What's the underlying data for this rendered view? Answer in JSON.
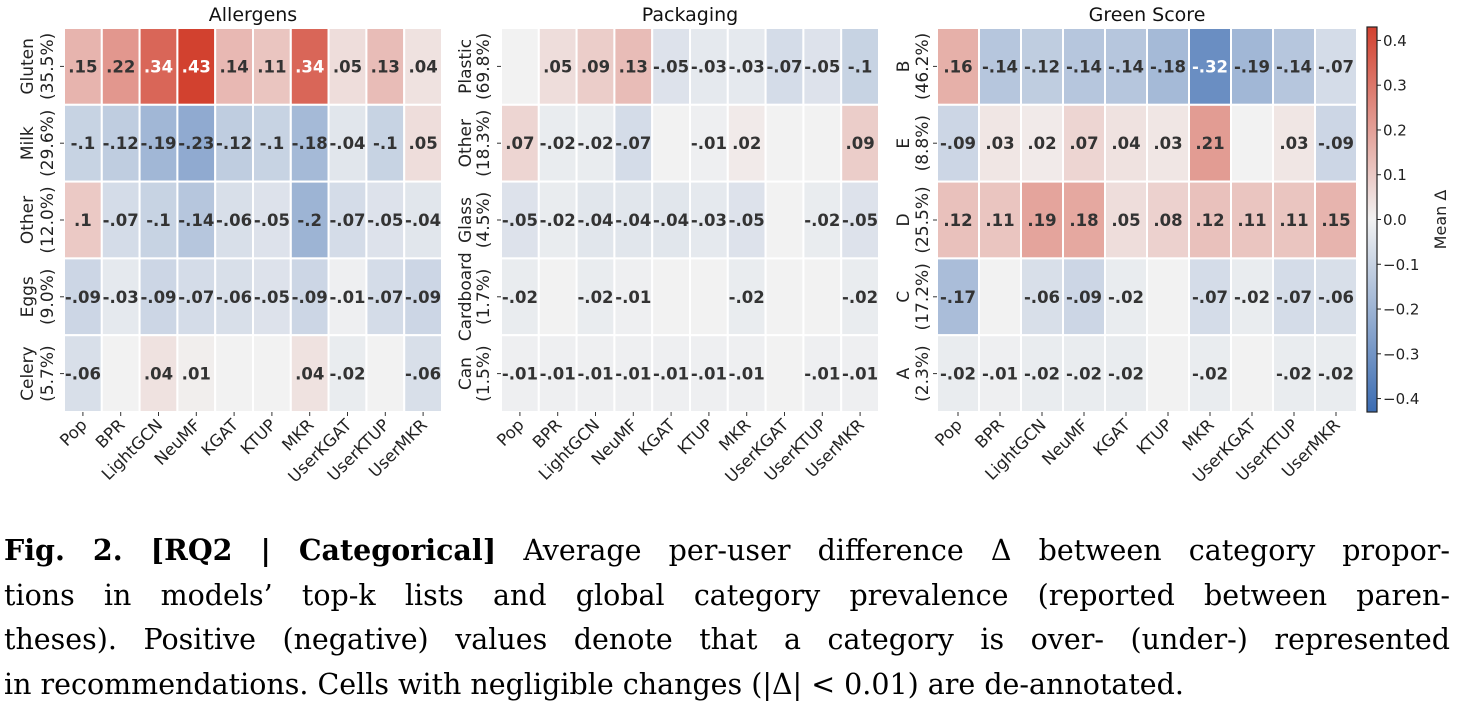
{
  "chart_data": {
    "type": "heatmap",
    "columns": [
      "Pop",
      "BPR",
      "LightGCN",
      "NeuMF",
      "KGAT",
      "KTUP",
      "MKR",
      "UserKGAT",
      "UserKTUP",
      "UserMKR"
    ],
    "colorbar": {
      "label": "Mean Δ",
      "range": [
        -0.43,
        0.43
      ],
      "ticks": [
        0.4,
        0.3,
        0.2,
        0.1,
        0.0,
        -0.1,
        -0.2,
        -0.3,
        -0.4
      ],
      "tick_labels": [
        "0.4",
        "0.3",
        "0.2",
        "0.1",
        "0.0",
        "−0.1",
        "−0.2",
        "−0.3",
        "−0.4"
      ],
      "colors": {
        "negative": "#3b6cb2",
        "center": "#f2f2f2",
        "positive": "#d2412f"
      }
    },
    "panels": [
      {
        "title": "Allergens",
        "rows": [
          {
            "label": "Gluten",
            "prevalence": "(35.5%)"
          },
          {
            "label": "Milk",
            "prevalence": "(29.6%)"
          },
          {
            "label": "Other",
            "prevalence": "(12.0%)"
          },
          {
            "label": "Eggs",
            "prevalence": "(9.0%)"
          },
          {
            "label": "Celery",
            "prevalence": "(5.7%)"
          }
        ],
        "values": [
          [
            0.15,
            0.22,
            0.34,
            0.43,
            0.14,
            0.11,
            0.34,
            0.05,
            0.13,
            0.04
          ],
          [
            -0.1,
            -0.12,
            -0.19,
            -0.23,
            -0.12,
            -0.1,
            -0.18,
            -0.04,
            -0.1,
            0.05
          ],
          [
            0.1,
            -0.07,
            -0.1,
            -0.14,
            -0.06,
            -0.05,
            -0.2,
            -0.07,
            -0.05,
            -0.04
          ],
          [
            -0.09,
            -0.03,
            -0.09,
            -0.07,
            -0.06,
            -0.05,
            -0.09,
            -0.01,
            -0.07,
            -0.09
          ],
          [
            -0.06,
            null,
            0.04,
            0.01,
            null,
            null,
            0.04,
            -0.02,
            null,
            -0.06
          ]
        ]
      },
      {
        "title": "Packaging",
        "rows": [
          {
            "label": "Plastic",
            "prevalence": "(69.8%)"
          },
          {
            "label": "Other",
            "prevalence": "(18.3%)"
          },
          {
            "label": "Glass",
            "prevalence": "(4.5%)"
          },
          {
            "label": "Cardboard",
            "prevalence": "(1.7%)"
          },
          {
            "label": "Can",
            "prevalence": "(1.5%)"
          }
        ],
        "values": [
          [
            null,
            0.05,
            0.09,
            0.13,
            -0.05,
            -0.03,
            -0.03,
            -0.07,
            -0.05,
            -0.1
          ],
          [
            0.07,
            -0.02,
            -0.02,
            -0.07,
            null,
            -0.01,
            0.02,
            null,
            null,
            0.09
          ],
          [
            -0.05,
            -0.02,
            -0.04,
            -0.04,
            -0.04,
            -0.03,
            -0.05,
            null,
            -0.02,
            -0.05
          ],
          [
            -0.02,
            null,
            -0.02,
            -0.01,
            null,
            null,
            -0.02,
            null,
            null,
            -0.02
          ],
          [
            -0.01,
            -0.01,
            -0.01,
            -0.01,
            -0.01,
            -0.01,
            -0.01,
            null,
            -0.01,
            -0.01
          ]
        ]
      },
      {
        "title": "Green Score",
        "rows": [
          {
            "label": "B",
            "prevalence": "(46.2%)"
          },
          {
            "label": "E",
            "prevalence": "(8.8%)"
          },
          {
            "label": "D",
            "prevalence": "(25.5%)"
          },
          {
            "label": "C",
            "prevalence": "(17.2%)"
          },
          {
            "label": "A",
            "prevalence": "(2.3%)"
          }
        ],
        "values": [
          [
            0.16,
            -0.14,
            -0.12,
            -0.14,
            -0.14,
            -0.18,
            -0.32,
            -0.19,
            -0.14,
            -0.07
          ],
          [
            -0.09,
            0.03,
            0.02,
            0.07,
            0.04,
            0.03,
            0.21,
            null,
            0.03,
            -0.09
          ],
          [
            0.12,
            0.11,
            0.19,
            0.18,
            0.05,
            0.08,
            0.12,
            0.11,
            0.11,
            0.15
          ],
          [
            -0.17,
            null,
            -0.06,
            -0.09,
            -0.02,
            null,
            -0.07,
            -0.02,
            -0.07,
            -0.06
          ],
          [
            -0.02,
            -0.01,
            -0.02,
            -0.02,
            -0.02,
            null,
            -0.02,
            null,
            -0.02,
            -0.02
          ]
        ]
      }
    ]
  },
  "caption": {
    "label": "Fig. 2. [RQ2 | Categorical]",
    "lines": [
      " Average per-user difference Δ between category propor-",
      "tions in models’ top-k lists and global category prevalence (reported between paren-",
      "theses). Positive (negative) values denote that a category is over- (under-) represented",
      "in recommendations. Cells with negligible changes (|Δ| < 0.01) are de-annotated."
    ]
  }
}
